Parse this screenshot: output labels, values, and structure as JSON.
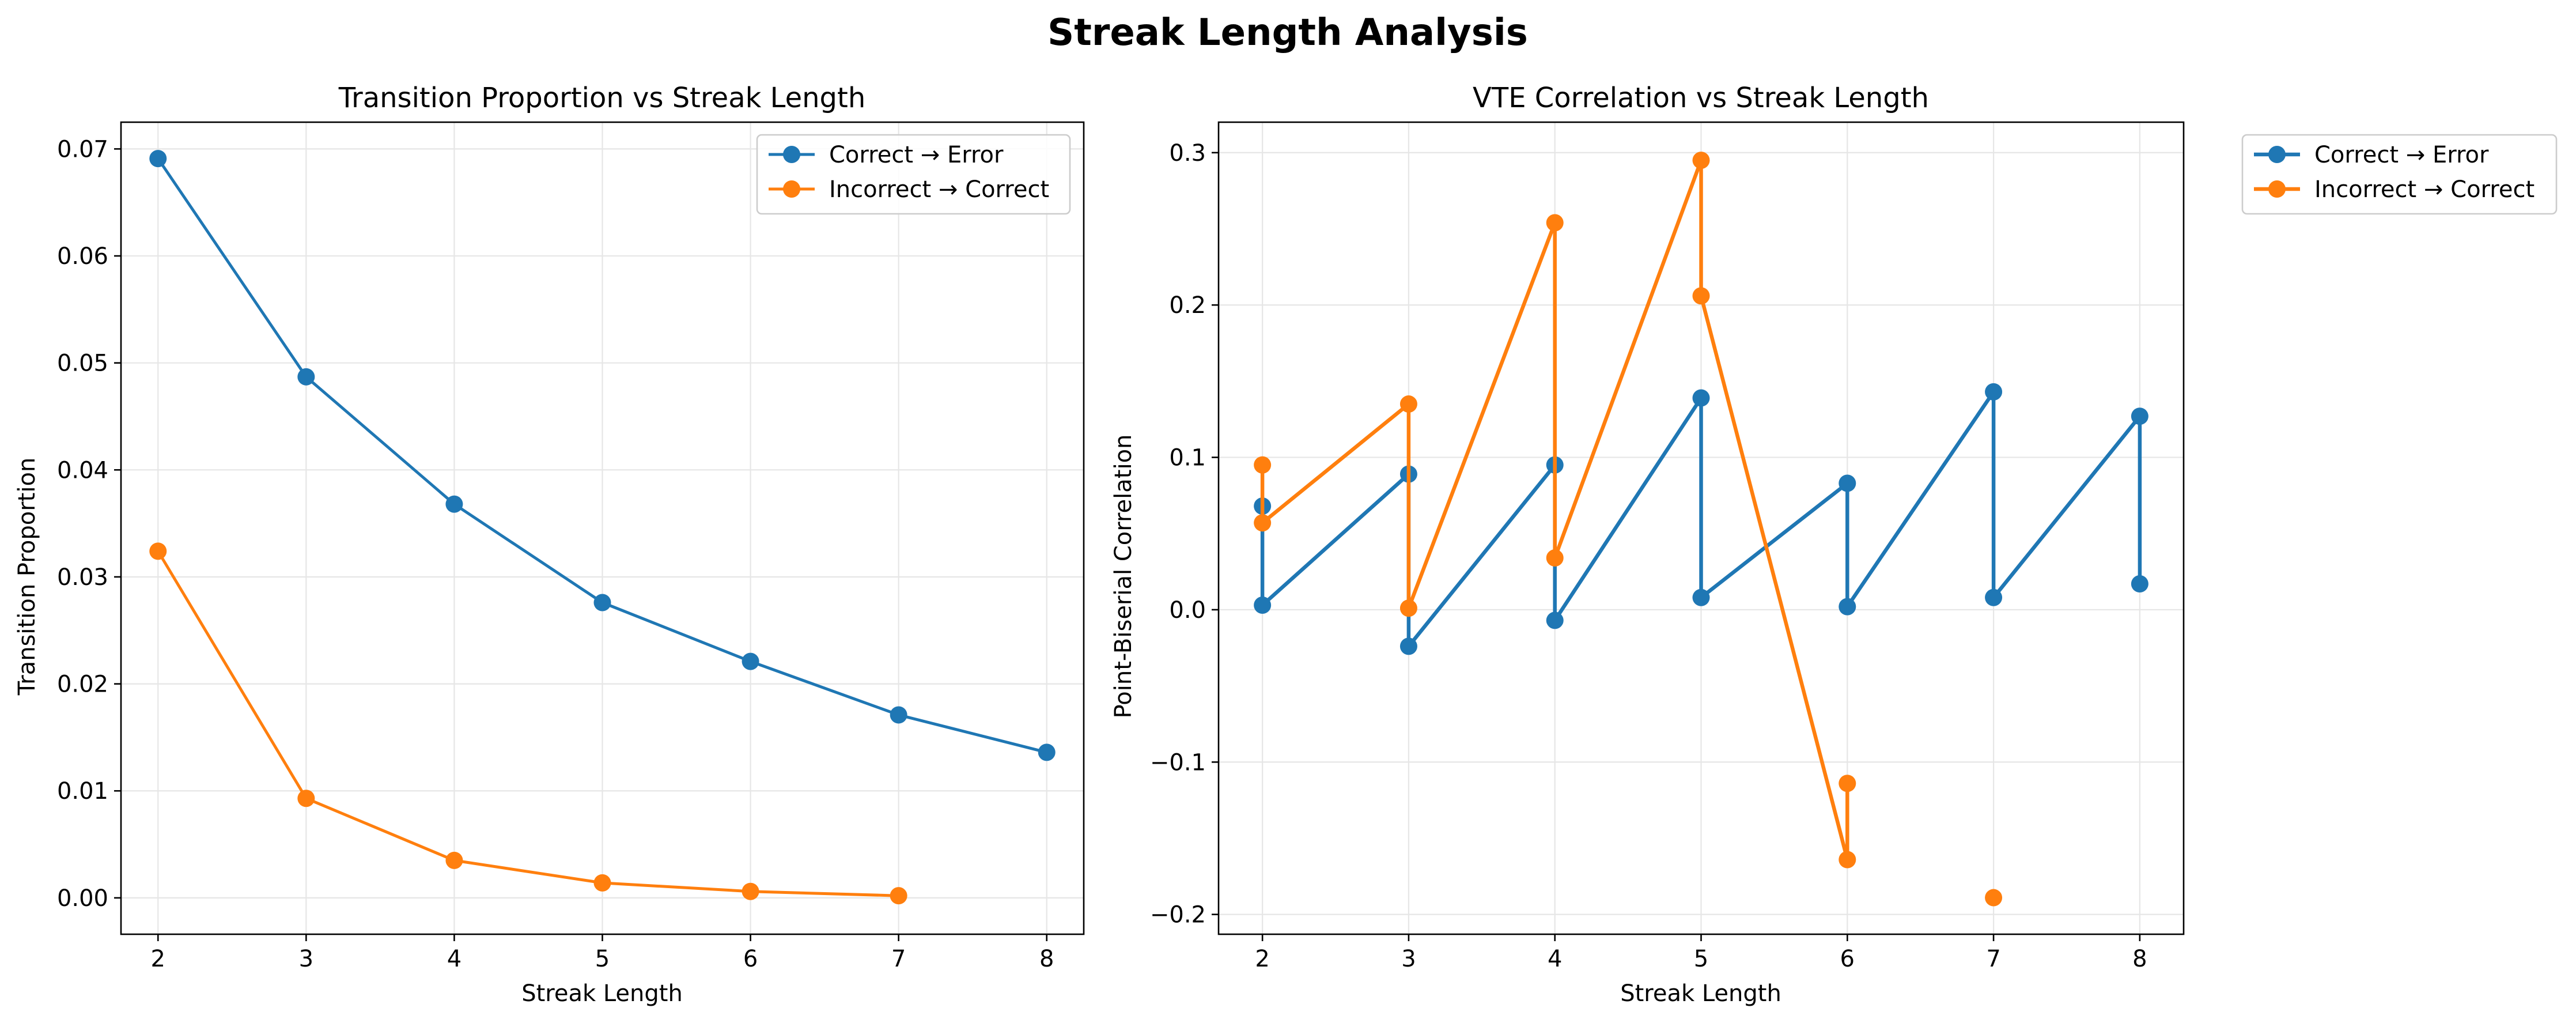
{
  "figure": {
    "title": "Streak Length Analysis"
  },
  "chart_data": [
    {
      "type": "line",
      "title": "Transition Proportion vs Streak Length",
      "xlabel": "Streak Length",
      "ylabel": "Transition Proportion",
      "xlim": [
        1.75,
        8.25
      ],
      "ylim": [
        -0.0034,
        0.0725
      ],
      "xticks": [
        2,
        3,
        4,
        5,
        6,
        7,
        8
      ],
      "yticks": [
        0.0,
        0.01,
        0.02,
        0.03,
        0.04,
        0.05,
        0.06,
        0.07
      ],
      "ytick_labels": [
        "0.00",
        "0.01",
        "0.02",
        "0.03",
        "0.04",
        "0.05",
        "0.06",
        "0.07"
      ],
      "grid": true,
      "legend_position": "upper-right-inside",
      "series": [
        {
          "name": "Correct → Error",
          "color": "#1f77b4",
          "x": [
            2,
            3,
            4,
            5,
            6,
            7,
            8
          ],
          "y": [
            0.0691,
            0.0487,
            0.0368,
            0.0276,
            0.0221,
            0.0171,
            0.0136
          ]
        },
        {
          "name": "Incorrect → Correct",
          "color": "#ff7f0e",
          "x": [
            2,
            3,
            4,
            5,
            6,
            7
          ],
          "y": [
            0.0324,
            0.0093,
            0.0035,
            0.0014,
            0.0006,
            0.0002
          ]
        }
      ]
    },
    {
      "type": "line",
      "title": "VTE Correlation vs Streak Length",
      "xlabel": "Streak Length",
      "ylabel": "Point-Biserial Correlation",
      "xlim": [
        1.7,
        8.3
      ],
      "ylim": [
        -0.213,
        0.32
      ],
      "xticks": [
        2,
        3,
        4,
        5,
        6,
        7,
        8
      ],
      "yticks": [
        -0.2,
        -0.1,
        0.0,
        0.1,
        0.2,
        0.3
      ],
      "ytick_labels": [
        "−0.2",
        "−0.1",
        "0.0",
        "0.1",
        "0.2",
        "0.3"
      ],
      "grid": true,
      "legend_position": "outside-right-top",
      "series": [
        {
          "name": "Correct → Error",
          "color": "#1f77b4",
          "x": [
            2,
            2,
            3,
            3,
            4,
            4,
            5,
            5,
            6,
            6,
            7,
            7,
            8,
            8
          ],
          "y": [
            0.068,
            0.003,
            0.089,
            -0.024,
            0.095,
            -0.007,
            0.139,
            0.008,
            0.083,
            0.002,
            0.143,
            0.008,
            0.127,
            0.017
          ]
        },
        {
          "name": "Incorrect → Correct",
          "color": "#ff7f0e",
          "x": [
            2,
            2,
            3,
            3,
            4,
            4,
            5,
            5,
            6,
            6,
            7
          ],
          "y": [
            0.095,
            0.057,
            0.135,
            0.001,
            0.254,
            0.034,
            0.295,
            0.206,
            -0.164,
            -0.114,
            -0.189
          ],
          "line_breaks_after_index": [
            9
          ]
        }
      ]
    }
  ]
}
